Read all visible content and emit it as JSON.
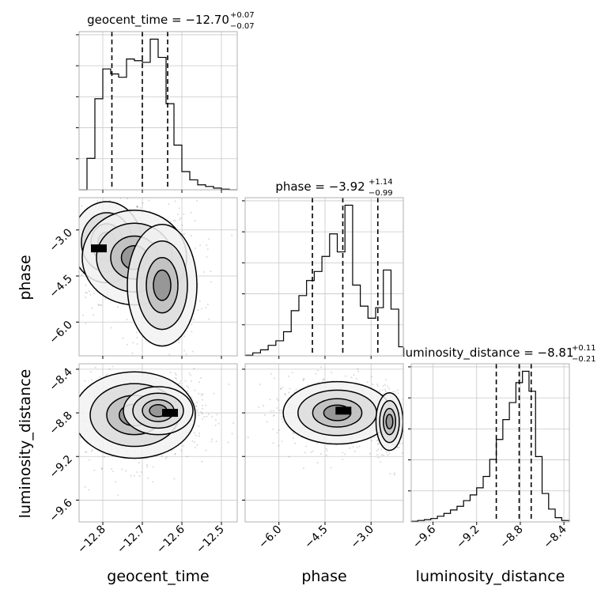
{
  "chart_data": {
    "type": "corner",
    "grid": true,
    "parameters": [
      {
        "name": "geocent_time",
        "label": "geocent_time",
        "title": {
          "main": "geocent_time = −12.70",
          "sup": "+0.07",
          "sub": "−0.07"
        },
        "range": [
          -12.86,
          -12.46
        ],
        "ticks": [
          -12.8,
          -12.7,
          -12.6,
          -12.5
        ],
        "tick_labels": [
          "−12.8",
          "−12.7",
          "−12.6",
          "−12.5"
        ],
        "quantiles": [
          -12.777,
          -12.7,
          -12.636
        ]
      },
      {
        "name": "phase",
        "label": "phase",
        "title": {
          "main": "phase = −3.92",
          "sup": "+1.14",
          "sub": "−0.99"
        },
        "range": [
          -7.1,
          -1.95
        ],
        "ticks": [
          -6.0,
          -4.5,
          -3.0
        ],
        "tick_labels": [
          "−6.0",
          "−4.5",
          "−3.0"
        ],
        "quantiles": [
          -4.91,
          -3.92,
          -2.78
        ]
      },
      {
        "name": "luminosity_distance",
        "label": "luminosity_distance",
        "title": {
          "main": "luminosity_distance = −8.81",
          "sup": "+0.11",
          "sub": "−0.21"
        },
        "range": [
          -9.8,
          -8.35
        ],
        "ticks": [
          -9.6,
          -9.2,
          -8.8,
          -8.4
        ],
        "tick_labels": [
          "−9.6",
          "−9.2",
          "−8.8",
          "−8.4"
        ],
        "quantiles": [
          -9.02,
          -8.81,
          -8.7
        ]
      }
    ],
    "histograms": [
      {
        "param": "geocent_time",
        "bins": [
          -12.86,
          -12.84,
          -12.82,
          -12.8,
          -12.78,
          -12.76,
          -12.74,
          -12.72,
          -12.7,
          -12.68,
          -12.66,
          -12.64,
          -12.62,
          -12.6,
          -12.58,
          -12.56,
          -12.54,
          -12.52,
          -12.5,
          -12.48,
          -12.46
        ],
        "values": [
          0.0,
          0.95,
          2.75,
          3.65,
          3.5,
          3.4,
          3.95,
          3.9,
          3.85,
          4.55,
          4.0,
          2.6,
          1.35,
          0.55,
          0.3,
          0.15,
          0.1,
          0.05,
          0.02,
          0.0
        ]
      },
      {
        "param": "phase",
        "bins": [
          -7.1,
          -6.85,
          -6.6,
          -6.35,
          -6.1,
          -5.85,
          -5.6,
          -5.35,
          -5.1,
          -4.85,
          -4.6,
          -4.35,
          -4.1,
          -3.85,
          -3.6,
          -3.35,
          -3.1,
          -2.85,
          -2.6,
          -2.35,
          -2.1,
          -1.95
        ],
        "values": [
          0.02,
          0.1,
          0.2,
          0.35,
          0.5,
          0.8,
          1.5,
          2.0,
          2.5,
          2.8,
          3.3,
          4.05,
          3.45,
          5.0,
          2.35,
          1.65,
          1.25,
          1.6,
          2.85,
          1.55,
          0.3
        ]
      },
      {
        "param": "luminosity_distance",
        "bins": [
          -9.8,
          -9.74,
          -9.68,
          -9.62,
          -9.56,
          -9.5,
          -9.44,
          -9.38,
          -9.32,
          -9.26,
          -9.2,
          -9.14,
          -9.08,
          -9.02,
          -8.96,
          -8.9,
          -8.84,
          -8.78,
          -8.72,
          -8.66,
          -8.6,
          -8.54,
          -8.48,
          -8.42,
          -8.35
        ],
        "values": [
          0.02,
          0.05,
          0.08,
          0.12,
          0.2,
          0.3,
          0.42,
          0.55,
          0.75,
          0.95,
          1.2,
          1.6,
          2.2,
          2.9,
          3.6,
          4.2,
          4.9,
          5.3,
          4.6,
          2.3,
          1.0,
          0.45,
          0.15,
          0.05
        ]
      }
    ],
    "pair_plots": [
      {
        "x": "geocent_time",
        "y": "phase",
        "modes": [
          {
            "center": [
              -12.79,
              -3.4
            ],
            "spread": [
              0.04,
              0.6
            ],
            "weight": 0.35
          },
          {
            "center": [
              -12.72,
              -3.9
            ],
            "spread": [
              0.06,
              0.7
            ],
            "weight": 0.35
          },
          {
            "center": [
              -12.65,
              -4.8
            ],
            "spread": [
              0.04,
              0.9
            ],
            "weight": 0.3
          }
        ],
        "peak": [
          -12.81,
          -3.6
        ]
      },
      {
        "x": "geocent_time",
        "y": "luminosity_distance",
        "modes": [
          {
            "center": [
              -12.72,
              -8.82
            ],
            "spread": [
              0.07,
              0.18
            ],
            "weight": 0.6
          },
          {
            "center": [
              -12.66,
              -8.78
            ],
            "spread": [
              0.04,
              0.1
            ],
            "weight": 0.4
          }
        ],
        "peak": [
          -12.63,
          -8.8
        ]
      },
      {
        "x": "phase",
        "y": "luminosity_distance",
        "modes": [
          {
            "center": [
              -4.1,
              -8.8
            ],
            "spread": [
              0.8,
              0.13
            ],
            "weight": 0.7
          },
          {
            "center": [
              -2.4,
              -8.88
            ],
            "spread": [
              0.2,
              0.12
            ],
            "weight": 0.3
          }
        ],
        "peak": [
          -3.9,
          -8.78
        ]
      }
    ]
  }
}
